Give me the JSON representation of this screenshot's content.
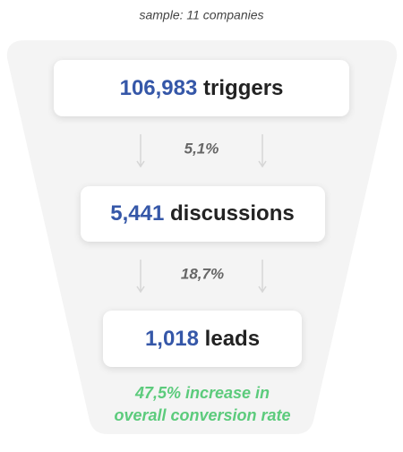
{
  "subtitle": "sample: 11 companies",
  "stages": [
    {
      "value": "106,983",
      "label": "triggers"
    },
    {
      "value": "5,441",
      "label": "discussions"
    },
    {
      "value": "1,018",
      "label": "leads"
    }
  ],
  "rates": [
    "5,1%",
    "18,7%"
  ],
  "note": [
    "47,5% increase in",
    "overall conversion rate"
  ]
}
